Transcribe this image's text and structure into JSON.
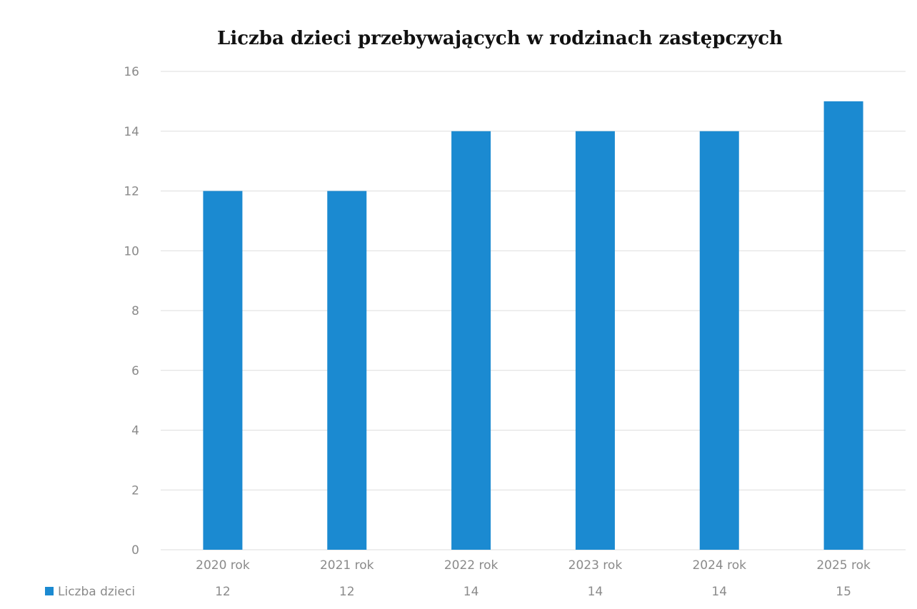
{
  "chart_data": {
    "type": "bar",
    "title": "Liczba dzieci przebywających w rodzinach zastępczych",
    "categories": [
      "2020 rok",
      "2021 rok",
      "2022 rok",
      "2023 rok",
      "2024 rok",
      "2025 rok"
    ],
    "series": [
      {
        "name": "Liczba dzieci",
        "values": [
          12,
          12,
          14,
          14,
          14,
          15
        ],
        "color": "#1b8ad1"
      }
    ],
    "ylim": [
      0,
      16
    ],
    "yticks": [
      0,
      2,
      4,
      6,
      8,
      10,
      12,
      14,
      16
    ],
    "grid": true,
    "legend": "bottom-left data table"
  }
}
